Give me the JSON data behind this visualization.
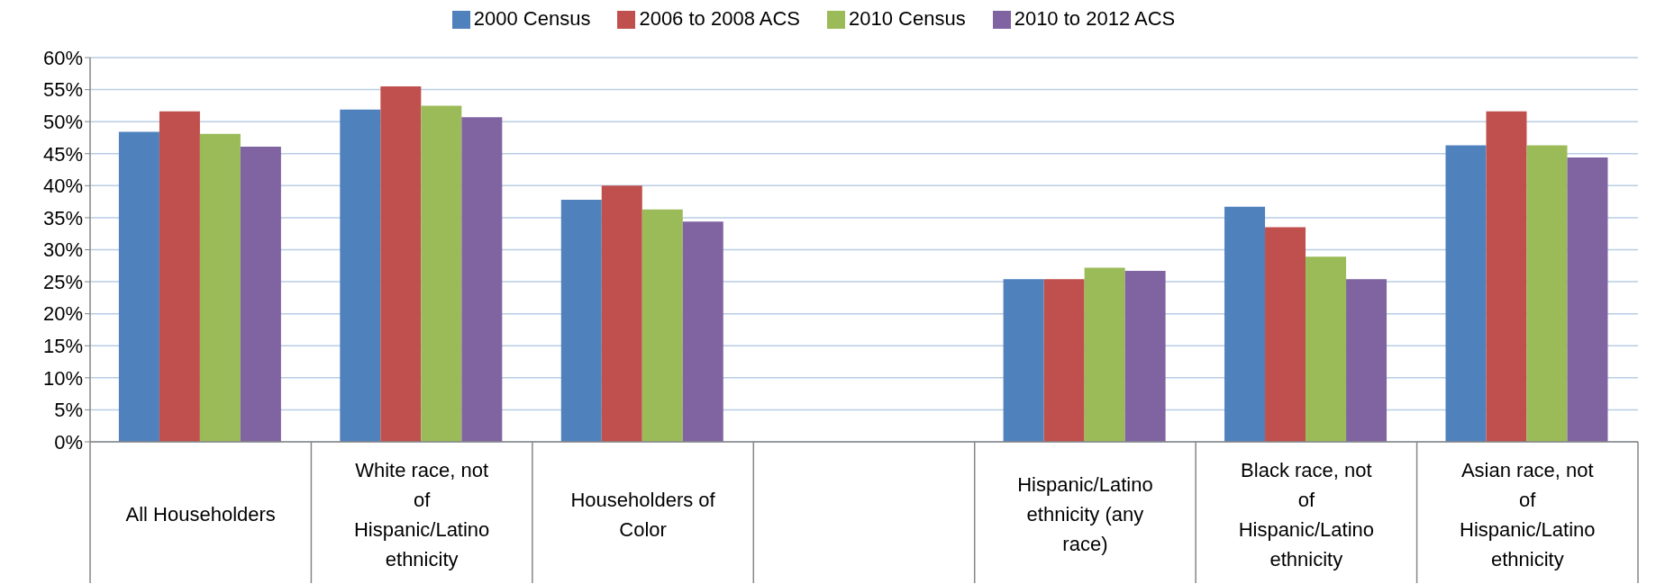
{
  "chart_data": {
    "type": "bar",
    "categories": [
      "All Householders",
      "White race, not of Hispanic/Latino ethnicity",
      "Householders of Color",
      null,
      "Hispanic/Latino ethnicity (any race)",
      "Black race, not of Hispanic/Latino ethnicity",
      "Asian race, not of Hispanic/Latino ethnicity"
    ],
    "series": [
      {
        "name": "2000 Census",
        "color": "#4f81bd",
        "values": [
          48.4,
          51.9,
          37.8,
          null,
          25.4,
          36.7,
          46.3
        ]
      },
      {
        "name": "2006 to 2008 ACS",
        "color": "#c0504d",
        "values": [
          51.6,
          55.5,
          40.0,
          null,
          25.4,
          33.5,
          51.6
        ]
      },
      {
        "name": "2010 Census",
        "color": "#9bbb59",
        "values": [
          48.1,
          52.5,
          36.3,
          null,
          27.2,
          28.9,
          46.3
        ]
      },
      {
        "name": "2010 to 2012 ACS",
        "color": "#8064a2",
        "values": [
          46.1,
          50.7,
          34.4,
          null,
          26.7,
          25.4,
          44.4
        ]
      }
    ],
    "ylim": [
      0,
      60
    ],
    "yticks": [
      {
        "value": 0,
        "label": "0%"
      },
      {
        "value": 5,
        "label": "5%"
      },
      {
        "value": 10,
        "label": "10%"
      },
      {
        "value": 15,
        "label": "15%"
      },
      {
        "value": 20,
        "label": "20%"
      },
      {
        "value": 25,
        "label": "25%"
      },
      {
        "value": 30,
        "label": "30%"
      },
      {
        "value": 35,
        "label": "35%"
      },
      {
        "value": 40,
        "label": "40%"
      },
      {
        "value": 45,
        "label": "45%"
      },
      {
        "value": 50,
        "label": "50%"
      },
      {
        "value": 55,
        "label": "55%"
      },
      {
        "value": 60,
        "label": "60%"
      }
    ],
    "grid": "y",
    "legend": "top"
  }
}
